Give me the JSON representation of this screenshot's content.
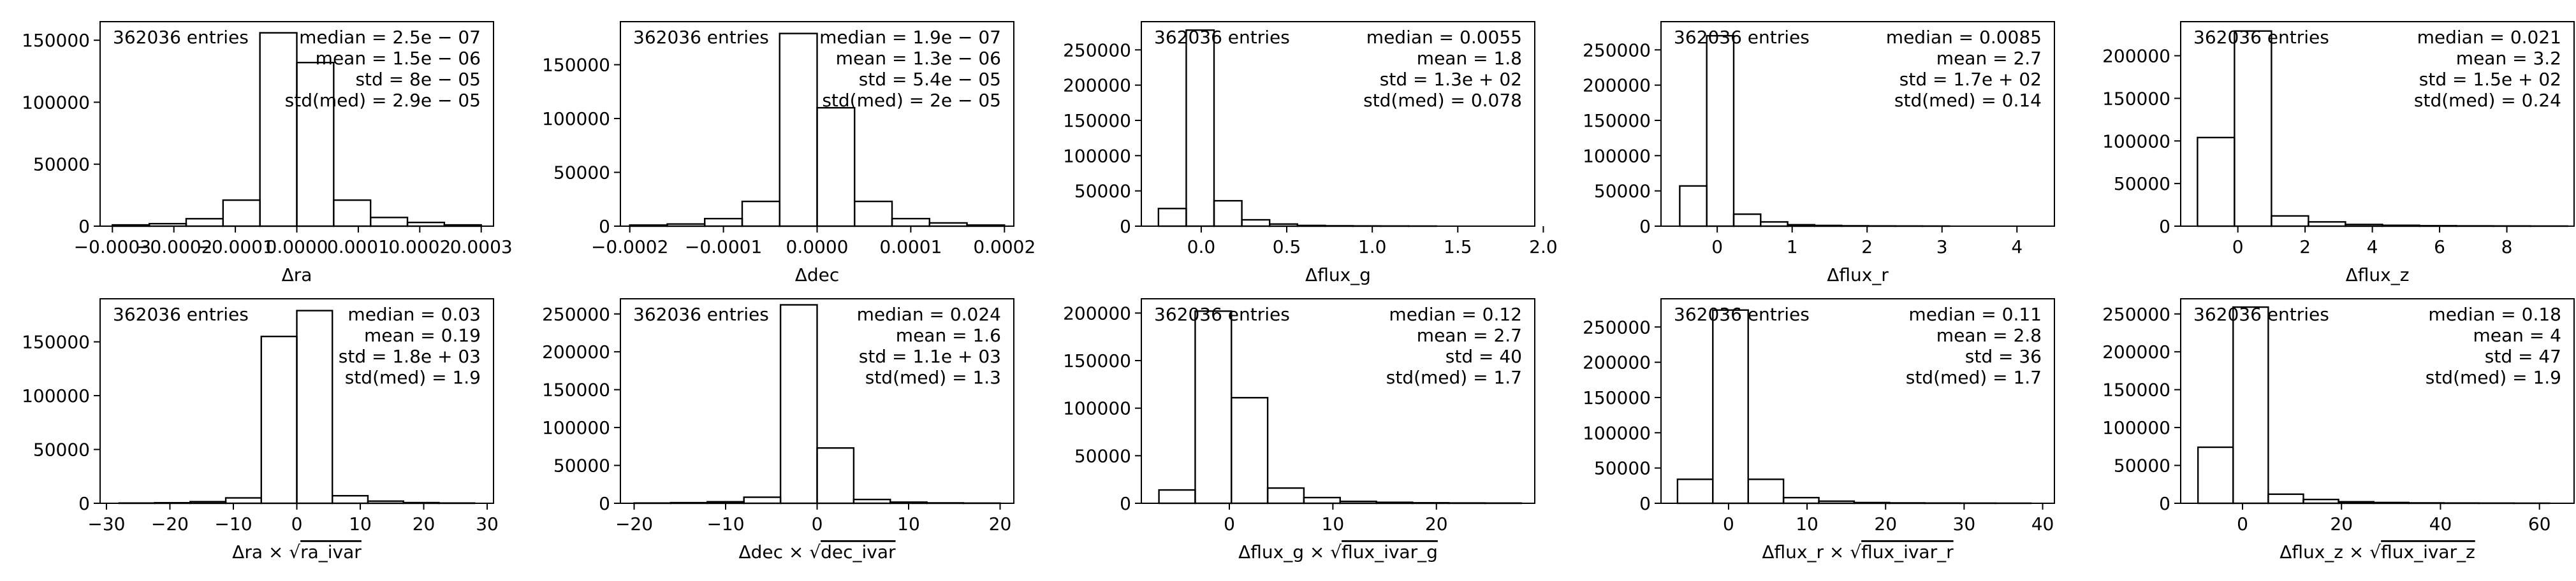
{
  "figure": {
    "background": "#ffffff",
    "line_color": "#000000"
  },
  "chart_data": [
    {
      "type": "histogram",
      "xlabel": "Δra",
      "xlim": [
        -0.00032,
        0.00032
      ],
      "ylim": [
        0,
        165000
      ],
      "xticks": [
        -0.0003,
        -0.0002,
        -0.0001,
        0.0,
        0.0001,
        0.0002,
        0.0003
      ],
      "xtick_labels": [
        "−0.0003",
        "−0.0002",
        "−0.0001",
        "0.0000",
        "0.0001",
        "0.0002",
        "0.0003"
      ],
      "yticks": [
        0,
        50000,
        100000,
        150000
      ],
      "ytick_labels": [
        "0",
        "50000",
        "100000",
        "150000"
      ],
      "bin_edges": [
        -0.0003,
        -0.00024,
        -0.00018,
        -0.00012,
        -6e-05,
        0.0,
        6e-05,
        0.00012,
        0.00018,
        0.00024,
        0.0003
      ],
      "counts": [
        1000,
        2000,
        6000,
        21000,
        156000,
        132000,
        21000,
        7000,
        3000,
        1000
      ],
      "entries_text": "362036 entries",
      "stats": [
        "median = 2.5e − 07",
        "mean = 1.5e − 06",
        "std = 8e − 05",
        "std(med) = 2.9e − 05"
      ]
    },
    {
      "type": "histogram",
      "xlabel": "Δdec",
      "xlim": [
        -0.00021,
        0.00021
      ],
      "ylim": [
        0,
        190000
      ],
      "xticks": [
        -0.0002,
        -0.0001,
        0.0,
        0.0001,
        0.0002
      ],
      "xtick_labels": [
        "−0.0002",
        "−0.0001",
        "0.0000",
        "0.0001",
        "0.0002"
      ],
      "yticks": [
        0,
        50000,
        100000,
        150000
      ],
      "ytick_labels": [
        "0",
        "50000",
        "100000",
        "150000"
      ],
      "bin_edges": [
        -0.0002,
        -0.00016,
        -0.00012,
        -8e-05,
        -4e-05,
        0.0,
        4e-05,
        8e-05,
        0.00012,
        0.00016,
        0.0002
      ],
      "counts": [
        1000,
        2000,
        7000,
        23000,
        179000,
        110000,
        23000,
        7000,
        3000,
        1000
      ],
      "entries_text": "362036 entries",
      "stats": [
        "median = 1.9e − 07",
        "mean = 1.3e − 06",
        "std = 5.4e − 05",
        "std(med) = 2e − 05"
      ]
    },
    {
      "type": "histogram",
      "xlabel": "Δflux_g",
      "xlim": [
        -0.35,
        1.95
      ],
      "ylim": [
        0,
        290000
      ],
      "xticks": [
        0.0,
        0.5,
        1.0,
        1.5,
        2.0
      ],
      "xtick_labels": [
        "0.0",
        "0.5",
        "1.0",
        "1.5",
        "2.0"
      ],
      "yticks": [
        0,
        50000,
        100000,
        150000,
        200000,
        250000
      ],
      "ytick_labels": [
        "0",
        "50000",
        "100000",
        "150000",
        "200000",
        "250000"
      ],
      "bin_edges": [
        -0.25,
        -0.0875,
        0.075,
        0.2375,
        0.4,
        0.5625,
        0.725,
        0.8875,
        1.05,
        1.2125,
        1.375
      ],
      "counts": [
        25000,
        278000,
        36000,
        9000,
        3000,
        1000,
        500,
        300,
        200,
        100
      ],
      "entries_text": "362036 entries",
      "stats": [
        "median = 0.0055",
        "mean = 1.8",
        "std = 1.3e + 02",
        "std(med) = 0.078"
      ]
    },
    {
      "type": "histogram",
      "xlabel": "Δflux_r",
      "xlim": [
        -0.75,
        4.5
      ],
      "ylim": [
        0,
        290000
      ],
      "xticks": [
        0,
        1,
        2,
        3,
        4
      ],
      "xtick_labels": [
        "0",
        "1",
        "2",
        "3",
        "4"
      ],
      "yticks": [
        0,
        50000,
        100000,
        150000,
        200000,
        250000
      ],
      "ytick_labels": [
        "0",
        "50000",
        "100000",
        "150000",
        "200000",
        "250000"
      ],
      "bin_edges": [
        -0.5,
        -0.14,
        0.22,
        0.58,
        0.94,
        1.3,
        1.66,
        2.02,
        2.38,
        2.74,
        3.1
      ],
      "counts": [
        57000,
        270000,
        17000,
        6000,
        2000,
        1000,
        500,
        300,
        200,
        100
      ],
      "entries_text": "362036 entries",
      "stats": [
        "median = 0.0085",
        "mean = 2.7",
        "std = 1.7e + 02",
        "std(med) = 0.14"
      ]
    },
    {
      "type": "histogram",
      "xlabel": "Δflux_z",
      "xlim": [
        -1.7,
        10.0
      ],
      "ylim": [
        0,
        240000
      ],
      "xticks": [
        0,
        2,
        4,
        6,
        8
      ],
      "xtick_labels": [
        "0",
        "2",
        "4",
        "6",
        "8"
      ],
      "yticks": [
        0,
        50000,
        100000,
        150000,
        200000
      ],
      "ytick_labels": [
        "0",
        "50000",
        "100000",
        "150000",
        "200000"
      ],
      "bin_edges": [
        -1.2,
        -0.1,
        1.0,
        2.1,
        3.2,
        4.3,
        5.4,
        6.5,
        7.6,
        8.7,
        9.8
      ],
      "counts": [
        104000,
        229000,
        12000,
        5000,
        2000,
        1000,
        500,
        300,
        200,
        100
      ],
      "entries_text": "362036 entries",
      "stats": [
        "median = 0.021",
        "mean = 3.2",
        "std = 1.5e + 02",
        "std(med) = 0.24"
      ]
    },
    {
      "type": "histogram",
      "xlabel": "Δra × √ra_ivar",
      "xlim": [
        -31,
        31
      ],
      "ylim": [
        0,
        190000
      ],
      "xticks": [
        -30,
        -20,
        -10,
        0,
        10,
        20,
        30
      ],
      "xtick_labels": [
        "−30",
        "−20",
        "−10",
        "0",
        "10",
        "20",
        "30"
      ],
      "yticks": [
        0,
        50000,
        100000,
        150000
      ],
      "ytick_labels": [
        "0",
        "50000",
        "100000",
        "150000"
      ],
      "bin_edges": [
        -28,
        -22.4,
        -16.8,
        -11.2,
        -5.6,
        0.0,
        5.6,
        11.2,
        16.8,
        22.4,
        28
      ],
      "counts": [
        200,
        500,
        1500,
        5000,
        155000,
        179000,
        7000,
        2000,
        600,
        200
      ],
      "entries_text": "362036 entries",
      "stats": [
        "median = 0.03",
        "mean = 0.19",
        "std = 1.8e + 03",
        "std(med) = 1.9"
      ]
    },
    {
      "type": "histogram",
      "xlabel": "Δdec × √dec_ivar",
      "xlim": [
        -21.5,
        21.5
      ],
      "ylim": [
        0,
        270000
      ],
      "xticks": [
        -20,
        -10,
        0,
        10,
        20
      ],
      "xtick_labels": [
        "−20",
        "−10",
        "0",
        "10",
        "20"
      ],
      "yticks": [
        0,
        50000,
        100000,
        150000,
        200000,
        250000
      ],
      "ytick_labels": [
        "0",
        "50000",
        "100000",
        "150000",
        "200000",
        "250000"
      ],
      "bin_edges": [
        -20,
        -16,
        -12,
        -8,
        -4,
        0,
        4,
        8,
        12,
        16,
        20
      ],
      "counts": [
        300,
        800,
        2000,
        8000,
        262000,
        73000,
        5000,
        1500,
        500,
        200
      ],
      "entries_text": "362036 entries",
      "stats": [
        "median = 0.024",
        "mean = 1.6",
        "std = 1.1e + 03",
        "std(med) = 1.3"
      ]
    },
    {
      "type": "histogram",
      "xlabel": "Δflux_g × √flux_ivar_g",
      "xlim": [
        -8.5,
        29.5
      ],
      "ylim": [
        0,
        215000
      ],
      "xticks": [
        0,
        10,
        20
      ],
      "xtick_labels": [
        "0",
        "10",
        "20"
      ],
      "yticks": [
        0,
        50000,
        100000,
        150000,
        200000
      ],
      "ytick_labels": [
        "0",
        "50000",
        "100000",
        "150000",
        "200000"
      ],
      "bin_edges": [
        -6.8,
        -3.3,
        0.2,
        3.7,
        7.2,
        10.7,
        14.2,
        17.7,
        21.2,
        24.7,
        28.2
      ],
      "counts": [
        14000,
        202000,
        111000,
        16000,
        6000,
        2000,
        1000,
        500,
        300,
        200
      ],
      "entries_text": "362036 entries",
      "stats": [
        "median = 0.12",
        "mean = 2.7",
        "std = 40",
        "std(med) = 1.7"
      ]
    },
    {
      "type": "histogram",
      "xlabel": "Δflux_r × √flux_ivar_r",
      "xlim": [
        -8.6,
        41.5
      ],
      "ylim": [
        0,
        290000
      ],
      "xticks": [
        0,
        10,
        20,
        30,
        40
      ],
      "xtick_labels": [
        "0",
        "10",
        "20",
        "30",
        "40"
      ],
      "yticks": [
        0,
        50000,
        100000,
        150000,
        200000,
        250000
      ],
      "ytick_labels": [
        "0",
        "50000",
        "100000",
        "150000",
        "200000",
        "250000"
      ],
      "bin_edges": [
        -6.5,
        -2.0,
        2.5,
        7.0,
        11.5,
        16.0,
        20.5,
        25.0,
        29.5,
        34.0,
        38.5
      ],
      "counts": [
        34000,
        274000,
        34000,
        8000,
        3000,
        1000,
        500,
        300,
        200,
        100
      ],
      "entries_text": "362036 entries",
      "stats": [
        "median = 0.11",
        "mean = 2.8",
        "std = 36",
        "std(med) = 1.7"
      ]
    },
    {
      "type": "histogram",
      "xlabel": "Δflux_z × √flux_ivar_z",
      "xlim": [
        -12.5,
        67.0
      ],
      "ylim": [
        0,
        270000
      ],
      "xticks": [
        0,
        20,
        40,
        60
      ],
      "xtick_labels": [
        "0",
        "20",
        "40",
        "60"
      ],
      "yticks": [
        0,
        50000,
        100000,
        150000,
        200000,
        250000
      ],
      "ytick_labels": [
        "0",
        "50000",
        "100000",
        "150000",
        "200000",
        "250000"
      ],
      "bin_edges": [
        -9.0,
        -1.9,
        5.2,
        12.3,
        19.4,
        26.5,
        33.6,
        40.7,
        47.8,
        54.9,
        62.0
      ],
      "counts": [
        74000,
        259000,
        12000,
        5000,
        2000,
        1000,
        500,
        300,
        200,
        100
      ],
      "entries_text": "362036 entries",
      "stats": [
        "median = 0.18",
        "mean = 4",
        "std = 47",
        "std(med) = 1.9"
      ]
    }
  ]
}
